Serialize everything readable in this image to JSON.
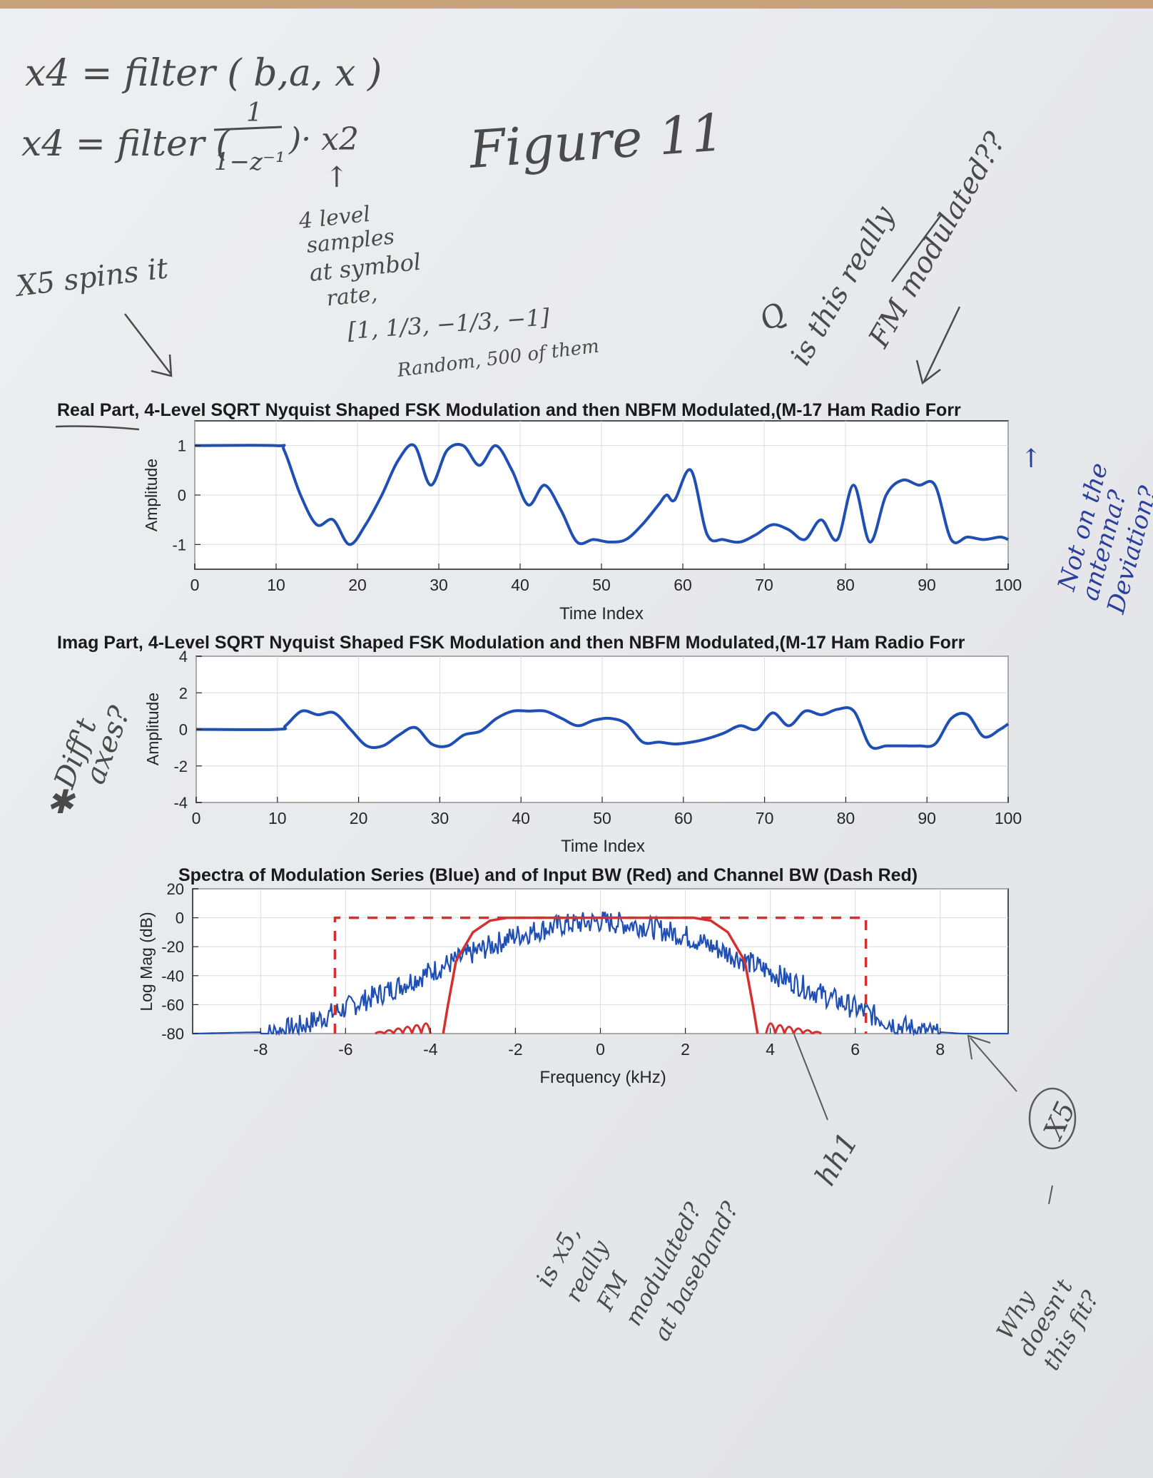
{
  "handwriting": {
    "line1": "x4 = filter ( b,a, x )",
    "line2_prefix": "x4 = filter (",
    "line2_num": "1",
    "line2_den": "1−z⁻¹",
    "line2_suffix": ")· x2",
    "arrow_up": "↑",
    "figure_label": "Figure 11",
    "x5_spins": "X5 spins it",
    "levels_note": [
      "4 level",
      "samples",
      "at symbol",
      "rate,"
    ],
    "levels_values": "[1, 1/3, −1/3, −1]",
    "random_note": "Random, 500 of them",
    "q_mark": "Q",
    "is_this_really": "is this really",
    "fm_modulated": "FM modulated??",
    "not_on_antenna": [
      "Not on the",
      "antenna?",
      "Deviation?"
    ],
    "diff_axes": [
      "Diff't",
      "axes?"
    ],
    "star": "✱",
    "hh1": "hh1",
    "x5_circle": "X5",
    "why_fit": [
      "Why",
      "doesn't",
      "this fit?"
    ],
    "is_x5": [
      "is x5,",
      "really",
      "FM",
      "modulated?",
      "at baseband?"
    ]
  },
  "colors": {
    "series_blue": "#1f4fb4",
    "filter_red": "#d62f2f",
    "grid": "#dcdcdc",
    "paper": "#f3f3f4"
  },
  "chart_data": [
    {
      "type": "line",
      "title": "Real Part, 4-Level SQRT Nyquist Shaped FSK Modulation and then NBFM Modulated,(M-17 Ham Radio Forr",
      "xlabel": "Time Index",
      "ylabel": "Amplitude",
      "xlim": [
        0,
        100
      ],
      "ylim": [
        -1.5,
        1.5
      ],
      "xticks": [
        "0",
        "10",
        "20",
        "30",
        "40",
        "50",
        "60",
        "70",
        "80",
        "90",
        "100"
      ],
      "yticks": [
        "-1",
        "0",
        "1"
      ],
      "grid": true,
      "series": [
        {
          "x": [
            0,
            10,
            11,
            13,
            15,
            17,
            19,
            21,
            23,
            25,
            27,
            29,
            31,
            33,
            35,
            37,
            39,
            41,
            43,
            45,
            47,
            49,
            51,
            53,
            55,
            57,
            58,
            59,
            61,
            63,
            65,
            67,
            69,
            71,
            73,
            75,
            77,
            79,
            81,
            83,
            85,
            87,
            89,
            91,
            93,
            95,
            97,
            99,
            100
          ],
          "y": [
            1,
            1,
            0.9,
            0.0,
            -0.6,
            -0.5,
            -1.0,
            -0.6,
            0.0,
            0.7,
            1.0,
            0.2,
            0.9,
            1.0,
            0.6,
            1.0,
            0.5,
            -0.2,
            0.2,
            -0.3,
            -0.95,
            -0.9,
            -0.95,
            -0.9,
            -0.6,
            -0.2,
            0.0,
            -0.1,
            0.5,
            -0.8,
            -0.9,
            -0.95,
            -0.8,
            -0.6,
            -0.7,
            -0.9,
            -0.5,
            -0.9,
            0.2,
            -0.95,
            0.0,
            0.3,
            0.2,
            0.2,
            -0.9,
            -0.85,
            -0.9,
            -0.85,
            -0.9
          ]
        }
      ]
    },
    {
      "type": "line",
      "title": "Imag Part, 4-Level SQRT Nyquist Shaped FSK Modulation and then NBFM Modulated,(M-17 Ham Radio Forr",
      "xlabel": "Time Index",
      "ylabel": "Amplitude",
      "xlim": [
        0,
        100
      ],
      "ylim": [
        -4,
        4
      ],
      "xticks": [
        "0",
        "10",
        "20",
        "30",
        "40",
        "50",
        "60",
        "70",
        "80",
        "90",
        "100"
      ],
      "yticks": [
        "-4",
        "-2",
        "0",
        "2",
        "4"
      ],
      "grid": true,
      "series": [
        {
          "x": [
            0,
            10,
            11,
            13,
            15,
            17,
            19,
            21,
            23,
            25,
            27,
            29,
            31,
            33,
            35,
            37,
            39,
            41,
            43,
            45,
            47,
            49,
            51,
            53,
            55,
            57,
            59,
            61,
            63,
            65,
            67,
            69,
            71,
            73,
            75,
            77,
            79,
            81,
            83,
            85,
            87,
            89,
            91,
            93,
            95,
            97,
            99,
            100
          ],
          "y": [
            0,
            0,
            0.2,
            1.0,
            0.8,
            0.9,
            0.0,
            -0.9,
            -0.9,
            -0.3,
            0.1,
            -0.8,
            -0.9,
            -0.3,
            -0.1,
            0.6,
            1.0,
            1.0,
            1.0,
            0.6,
            0.2,
            0.5,
            0.6,
            0.3,
            -0.7,
            -0.7,
            -0.8,
            -0.7,
            -0.5,
            -0.2,
            0.2,
            0.0,
            0.9,
            0.2,
            1.0,
            0.8,
            1.1,
            1.0,
            -0.9,
            -0.9,
            -0.9,
            -0.9,
            -0.8,
            0.6,
            0.8,
            -0.4,
            0.0,
            0.3
          ]
        }
      ]
    },
    {
      "type": "line",
      "title": "Spectra of Modulation Series (Blue) and of Input BW (Red) and Channel BW (Dash Red)",
      "xlabel": "Frequency (kHz)",
      "ylabel": "Log Mag (dB)",
      "xlim": [
        -9.6,
        9.6
      ],
      "ylim": [
        -80,
        20
      ],
      "xticks": [
        "-8",
        "-6",
        "-4",
        "-2",
        "0",
        "2",
        "4",
        "6",
        "8"
      ],
      "yticks": [
        "-80",
        "-60",
        "-40",
        "-20",
        "0",
        "20"
      ],
      "grid": true,
      "series": [
        {
          "name": "Modulation Series (Blue)",
          "x": [
            -9.6,
            -8,
            -7,
            -6,
            -5,
            -4,
            -3,
            -2,
            -1,
            0,
            1,
            2,
            3,
            4,
            5,
            6,
            7,
            8,
            8.5,
            9.6
          ],
          "y": [
            -80,
            -79,
            -72,
            -60,
            -48,
            -35,
            -22,
            -10,
            -3,
            0,
            -3,
            -10,
            -22,
            -35,
            -48,
            -60,
            -72,
            -79,
            -80,
            -80
          ]
        },
        {
          "name": "Input BW (Red)",
          "x": [
            -3.7,
            -3.6,
            -3.4,
            -3.0,
            -2.6,
            -2.2,
            2.2,
            2.6,
            3.0,
            3.4,
            3.6,
            3.7
          ],
          "y": [
            -80,
            -62,
            -30,
            -10,
            -2,
            0,
            0,
            -2,
            -10,
            -30,
            -62,
            -80
          ]
        },
        {
          "name": "Channel BW (Dash Red)",
          "x": [
            -6.25,
            -6.25,
            6.25,
            6.25
          ],
          "y": [
            -80,
            0,
            0,
            -80
          ]
        }
      ]
    }
  ]
}
